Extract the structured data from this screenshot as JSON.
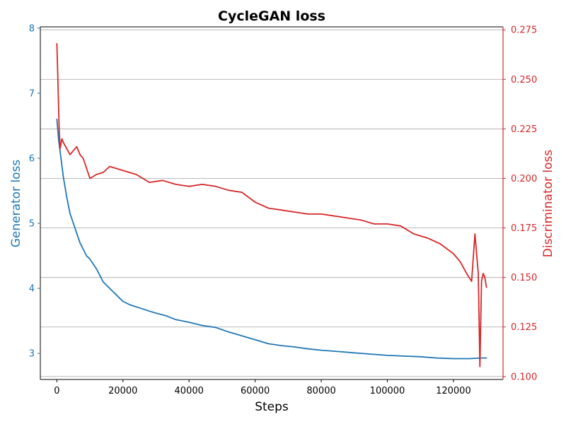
{
  "chart_data": {
    "type": "line",
    "title": "CycleGAN loss",
    "xlabel": "Steps",
    "ylabel_left": "Generator loss",
    "ylabel_right": "Discriminator loss",
    "xlim": [
      -5000,
      135000
    ],
    "ylim_left": [
      2.6,
      8.02
    ],
    "ylim_right": [
      0.0985,
      0.2765
    ],
    "x_ticks": [
      0,
      20000,
      40000,
      60000,
      80000,
      100000,
      120000
    ],
    "y_ticks_left": [
      3,
      4,
      5,
      6,
      7,
      8
    ],
    "y_ticks_right": [
      0.1,
      0.125,
      0.15,
      0.175,
      0.2,
      0.225,
      0.25,
      0.275
    ],
    "y_tick_labels_right": [
      "0.100",
      "0.125",
      "0.150",
      "0.175",
      "0.200",
      "0.225",
      "0.250",
      "0.275"
    ],
    "grid": "horizontal, right axis",
    "colors": {
      "generator": "#1f77b4",
      "discriminator": "#d62728",
      "grid": "#b0b0b0"
    },
    "series": [
      {
        "name": "Generator loss",
        "axis": "left",
        "x": [
          0,
          500,
          1000,
          1500,
          2000,
          3000,
          4000,
          5000,
          6000,
          7000,
          8000,
          9000,
          10000,
          12000,
          14000,
          16000,
          18000,
          20000,
          22000,
          25000,
          28000,
          30000,
          33000,
          36000,
          40000,
          44000,
          48000,
          52000,
          56000,
          60000,
          64000,
          68000,
          72000,
          76000,
          80000,
          85000,
          90000,
          95000,
          100000,
          105000,
          110000,
          115000,
          120000,
          125000,
          128000,
          130000
        ],
        "y": [
          6.6,
          6.3,
          6.1,
          5.9,
          5.7,
          5.4,
          5.15,
          5.0,
          4.85,
          4.7,
          4.6,
          4.5,
          4.45,
          4.3,
          4.1,
          4.0,
          3.9,
          3.8,
          3.75,
          3.7,
          3.65,
          3.62,
          3.58,
          3.52,
          3.48,
          3.43,
          3.4,
          3.33,
          3.27,
          3.21,
          3.15,
          3.12,
          3.1,
          3.07,
          3.05,
          3.03,
          3.01,
          2.99,
          2.97,
          2.96,
          2.95,
          2.93,
          2.92,
          2.92,
          2.93,
          2.93
        ]
      },
      {
        "name": "Discriminator loss",
        "axis": "right",
        "x": [
          0,
          300,
          700,
          1000,
          1500,
          2000,
          3000,
          4000,
          5000,
          6000,
          7000,
          8000,
          9000,
          10000,
          12000,
          14000,
          16000,
          18000,
          20000,
          24000,
          28000,
          32000,
          36000,
          40000,
          44000,
          48000,
          52000,
          56000,
          60000,
          64000,
          68000,
          72000,
          76000,
          80000,
          84000,
          88000,
          92000,
          96000,
          100000,
          104000,
          108000,
          112000,
          116000,
          120000,
          122000,
          124000,
          125500,
          126500,
          127500,
          128000,
          128500,
          129000,
          129500,
          130000
        ],
        "y": [
          0.268,
          0.25,
          0.225,
          0.215,
          0.22,
          0.218,
          0.215,
          0.212,
          0.214,
          0.216,
          0.212,
          0.21,
          0.205,
          0.2,
          0.202,
          0.203,
          0.206,
          0.205,
          0.204,
          0.202,
          0.198,
          0.199,
          0.197,
          0.196,
          0.197,
          0.196,
          0.194,
          0.193,
          0.188,
          0.185,
          0.184,
          0.183,
          0.182,
          0.182,
          0.181,
          0.18,
          0.179,
          0.177,
          0.177,
          0.176,
          0.172,
          0.17,
          0.167,
          0.162,
          0.158,
          0.152,
          0.148,
          0.172,
          0.152,
          0.105,
          0.148,
          0.152,
          0.15,
          0.145
        ]
      }
    ]
  }
}
